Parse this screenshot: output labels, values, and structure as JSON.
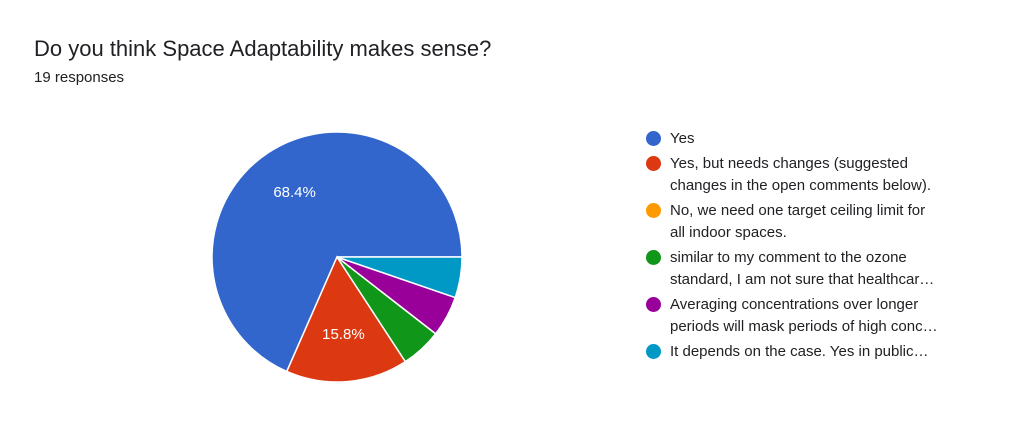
{
  "header": {
    "title": "Do you think Space Adaptability makes sense?",
    "responses": "19 responses"
  },
  "chart_data": {
    "type": "pie",
    "total_responses": 19,
    "categories": [
      "Yes",
      "Yes, but needs changes (suggested changes in the open comments below).",
      "No, we need one target ceiling limit for all indoor spaces.",
      "similar to my comment to the ozone standard, I am not sure that healthcar…",
      "Averaging concentrations over longer periods will mask periods of high conc…",
      "It depends on the case. Yes in public…"
    ],
    "legend_display": [
      "Yes",
      "Yes, but needs changes (suggested\nchanges in the open comments below).",
      "No, we need one target ceiling limit for\nall indoor spaces.",
      "similar to my comment to the ozone\nstandard, I am not sure that healthcar…",
      "Averaging concentrations over longer\nperiods will mask periods of high conc…",
      "It depends on the case. Yes in public…"
    ],
    "values": [
      13,
      3,
      0,
      1,
      1,
      1
    ],
    "percent_labels": [
      "68.4%",
      "15.8%",
      "",
      "",
      "",
      ""
    ],
    "colors": [
      "#3366cc",
      "#dc3912",
      "#ff9900",
      "#109618",
      "#990099",
      "#0099c6"
    ],
    "legend_position": "right"
  }
}
